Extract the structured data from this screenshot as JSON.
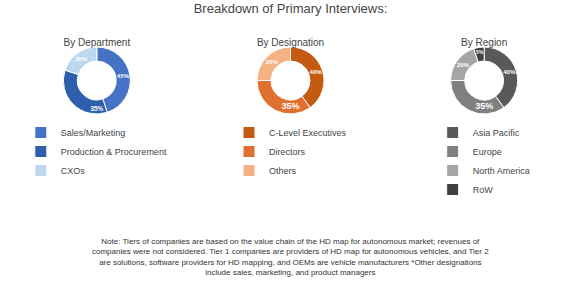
{
  "title": "Breakdown of Primary Interviews:",
  "annotations": [
    "Note: Tiers of companies are based on the value chain of the HD map for autonomous market; revenues of\ncompanies were not considered. Tier 1 companies are providers of HD map for autonomous vehicles, and Tier 2\nare solutions, software providers for HD mapping, and OEMs are vehicle manufacturers *Other designations\ninclude sales, marketing, and product managers"
  ],
  "chart_data": [
    {
      "type": "donut",
      "title": "By Department",
      "categories": [
        "Sales/Marketing",
        "Production & Procurement",
        "CXOs"
      ],
      "values": [
        45,
        35,
        20
      ],
      "value_labels": [
        "45%",
        "35%",
        "20%"
      ],
      "colors": [
        "#4472C4",
        "#2E5FAD",
        "#BDD7EE"
      ],
      "data_labels": true,
      "legend": "bottom"
    },
    {
      "type": "donut",
      "title": "By Designation",
      "categories": [
        "C-Level Executives",
        "Directors",
        "Others"
      ],
      "values": [
        40,
        35,
        25
      ],
      "value_labels": [
        "40%",
        "35%",
        "25%"
      ],
      "colors": [
        "#C55A11",
        "#E07030",
        "#F4B183"
      ],
      "data_labels": true,
      "legend": "bottom"
    },
    {
      "type": "donut",
      "title": "By Region",
      "categories": [
        "Asia Pacific",
        "Europe",
        "North America",
        "RoW"
      ],
      "values": [
        40,
        35,
        20,
        5
      ],
      "value_labels": [
        "40%",
        "35%",
        "20%",
        "5%"
      ],
      "colors": [
        "#595959",
        "#808080",
        "#A6A6A6",
        "#404040"
      ],
      "data_labels": true,
      "legend": "bottom"
    }
  ]
}
